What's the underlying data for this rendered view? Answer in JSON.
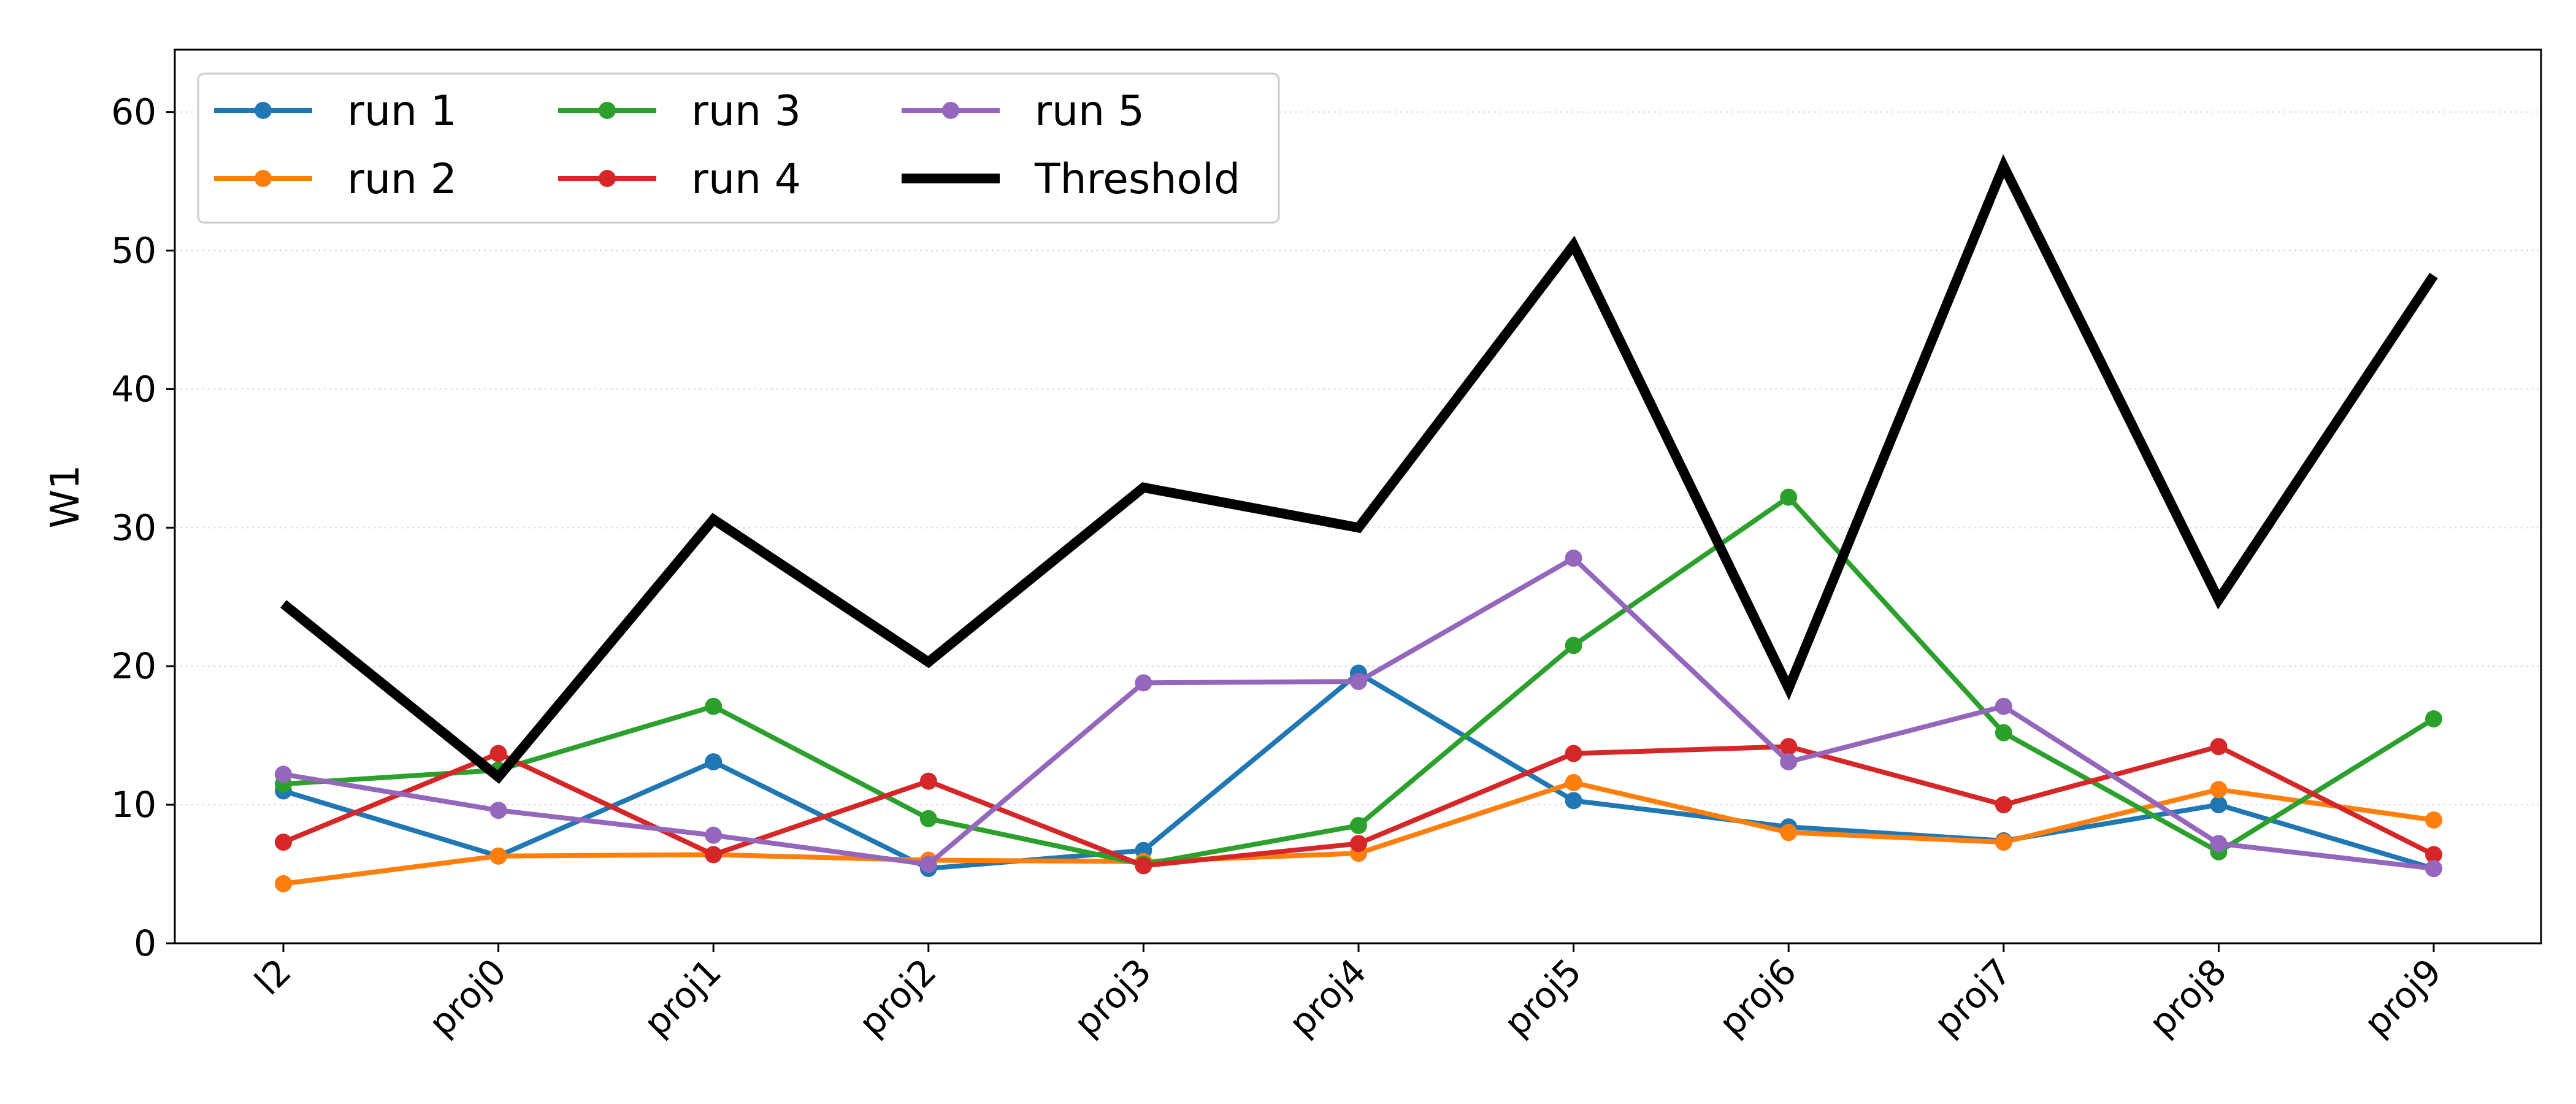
{
  "chart_data": {
    "type": "line",
    "title": "",
    "xlabel": "",
    "ylabel": "W1",
    "categories": [
      "l2",
      "proj0",
      "proj1",
      "proj2",
      "proj3",
      "proj4",
      "proj5",
      "proj6",
      "proj7",
      "proj8",
      "proj9"
    ],
    "ylim": [
      0,
      64.5
    ],
    "yticks": [
      0,
      10,
      20,
      30,
      40,
      50,
      60
    ],
    "grid": "horizontal-dotted",
    "legend_position": "top-left",
    "legend_columns": 3,
    "series": [
      {
        "name": "run 1",
        "color": "#1f77b4",
        "marker": "circle",
        "values": [
          11.0,
          6.3,
          13.1,
          5.4,
          6.7,
          19.5,
          10.3,
          8.4,
          7.4,
          10.0,
          5.4
        ]
      },
      {
        "name": "run 2",
        "color": "#ff7f0e",
        "marker": "circle",
        "values": [
          4.3,
          6.3,
          6.4,
          6.0,
          5.9,
          6.5,
          11.6,
          8.0,
          7.3,
          11.1,
          8.9
        ]
      },
      {
        "name": "run 3",
        "color": "#2ca02c",
        "marker": "circle",
        "values": [
          11.5,
          12.5,
          17.1,
          9.0,
          5.7,
          8.5,
          21.5,
          32.2,
          15.2,
          6.6,
          16.2
        ]
      },
      {
        "name": "run 4",
        "color": "#d62728",
        "marker": "circle",
        "values": [
          7.3,
          13.7,
          6.4,
          11.7,
          5.6,
          7.2,
          13.7,
          14.2,
          10.0,
          14.2,
          6.4
        ]
      },
      {
        "name": "run 5",
        "color": "#9467bd",
        "marker": "circle",
        "values": [
          12.2,
          9.6,
          7.8,
          5.7,
          18.8,
          18.9,
          27.8,
          13.1,
          17.1,
          7.2,
          5.4
        ]
      },
      {
        "name": "Threshold",
        "color": "#000000",
        "marker": "none",
        "thick": true,
        "values": [
          24.5,
          12.0,
          30.6,
          20.3,
          32.9,
          30.0,
          50.4,
          18.4,
          56.1,
          24.8,
          48.2
        ]
      }
    ]
  }
}
